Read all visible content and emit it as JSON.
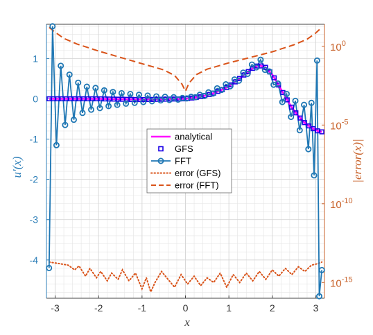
{
  "chart_data": {
    "type": "line",
    "xlabel": "x",
    "ylabel_left": "u'(x)",
    "ylabel_right": "|error(x)|",
    "xlim": [
      -3.2,
      3.2
    ],
    "ylim_left": [
      -4.95,
      1.85
    ],
    "ylim_right_exponent": [
      -16,
      1.4
    ],
    "yscale_right": "log",
    "x_ticks": [
      {
        "v": -3,
        "label": "-3"
      },
      {
        "v": -2,
        "label": "-2"
      },
      {
        "v": -1,
        "label": "-1"
      },
      {
        "v": 0,
        "label": "0"
      },
      {
        "v": 1,
        "label": "1"
      },
      {
        "v": 2,
        "label": "2"
      },
      {
        "v": 3,
        "label": "3"
      }
    ],
    "y_left_ticks": [
      {
        "v": 1,
        "label": "1"
      },
      {
        "v": 0,
        "label": "0"
      },
      {
        "v": -1,
        "label": "-1"
      },
      {
        "v": -2,
        "label": "-2"
      },
      {
        "v": -3,
        "label": "-3"
      },
      {
        "v": -4,
        "label": "-4"
      }
    ],
    "y_right_ticks": [
      {
        "exp": 0,
        "base": "10",
        "sup": "0"
      },
      {
        "exp": -5,
        "base": "10",
        "sup": "-5"
      },
      {
        "exp": -10,
        "base": "10",
        "sup": "-10"
      },
      {
        "exp": -15,
        "base": "10",
        "sup": "-15"
      }
    ],
    "grid": true,
    "legend_position": "center",
    "colors": {
      "left_axis": "#2d7fb8",
      "right_axis": "#c8622a",
      "analytical": "#ff00ff",
      "gfs": "#1a00e6",
      "fft": "#1f77b4",
      "error_gfs": "#d95319",
      "error_fft": "#d95319",
      "grid": "#e4e4e4"
    },
    "series": [
      {
        "name": "analytical",
        "style": "line",
        "color": "#ff00ff"
      },
      {
        "name": "GFS",
        "style": "square-markers",
        "color": "#1a00e6"
      },
      {
        "name": "FFT",
        "style": "line-circle",
        "color": "#1f77b4"
      },
      {
        "name": "error (GFS)",
        "style": "dotted",
        "color": "#d95319",
        "axis": "right"
      },
      {
        "name": "error (FFT)",
        "style": "dashed",
        "color": "#d95319",
        "axis": "right"
      }
    ],
    "legend": [
      {
        "label": "analytical",
        "style": "line"
      },
      {
        "label": "GFS",
        "style": "square"
      },
      {
        "label": "FFT",
        "style": "line-circle"
      },
      {
        "label": "error (GFS)",
        "style": "dotted"
      },
      {
        "label": "error (FFT)",
        "style": "dashed"
      }
    ],
    "analytical_points": [
      [
        -3.14,
        0.0
      ],
      [
        -2.5,
        0.0
      ],
      [
        -2.0,
        0.0
      ],
      [
        -1.5,
        -0.01
      ],
      [
        -1.0,
        -0.02
      ],
      [
        -0.5,
        -0.01
      ],
      [
        0.0,
        0.0
      ],
      [
        0.3,
        0.04
      ],
      [
        0.6,
        0.12
      ],
      [
        0.9,
        0.25
      ],
      [
        1.1,
        0.38
      ],
      [
        1.3,
        0.55
      ],
      [
        1.45,
        0.68
      ],
      [
        1.6,
        0.8
      ],
      [
        1.7,
        0.83
      ],
      [
        1.85,
        0.78
      ],
      [
        2.0,
        0.6
      ],
      [
        2.15,
        0.33
      ],
      [
        2.3,
        0.05
      ],
      [
        2.45,
        -0.22
      ],
      [
        2.6,
        -0.43
      ],
      [
        2.75,
        -0.6
      ],
      [
        2.9,
        -0.72
      ],
      [
        3.05,
        -0.8
      ],
      [
        3.14,
        -0.82
      ]
    ],
    "fft_points": [
      [
        -3.14,
        -4.2
      ],
      [
        -3.06,
        1.8
      ],
      [
        -2.97,
        -1.15
      ],
      [
        -2.87,
        0.82
      ],
      [
        -2.77,
        -0.65
      ],
      [
        -2.67,
        0.6
      ],
      [
        -2.57,
        -0.52
      ],
      [
        -2.47,
        0.4
      ],
      [
        -2.37,
        -0.35
      ],
      [
        -2.27,
        0.3
      ],
      [
        -2.17,
        -0.27
      ],
      [
        -2.07,
        0.27
      ],
      [
        -1.97,
        -0.23
      ],
      [
        -1.87,
        0.21
      ],
      [
        -1.77,
        -0.18
      ],
      [
        -1.67,
        0.17
      ],
      [
        -1.57,
        -0.15
      ],
      [
        -1.47,
        0.14
      ],
      [
        -1.37,
        -0.12
      ],
      [
        -1.27,
        0.12
      ],
      [
        -1.17,
        -0.1
      ],
      [
        -1.07,
        0.1
      ],
      [
        -0.97,
        -0.08
      ],
      [
        -0.87,
        0.08
      ],
      [
        -0.77,
        -0.06
      ],
      [
        -0.67,
        0.06
      ],
      [
        -0.57,
        -0.04
      ],
      [
        -0.47,
        0.05
      ],
      [
        -0.37,
        -0.03
      ],
      [
        -0.27,
        0.04
      ],
      [
        -0.17,
        -0.02
      ],
      [
        -0.07,
        0.02
      ],
      [
        0.03,
        0.01
      ],
      [
        0.13,
        0.05
      ],
      [
        0.23,
        0.04
      ],
      [
        0.33,
        0.1
      ],
      [
        0.43,
        0.07
      ],
      [
        0.53,
        0.16
      ],
      [
        0.63,
        0.13
      ],
      [
        0.73,
        0.26
      ],
      [
        0.83,
        0.22
      ],
      [
        0.93,
        0.36
      ],
      [
        1.03,
        0.31
      ],
      [
        1.13,
        0.48
      ],
      [
        1.23,
        0.45
      ],
      [
        1.33,
        0.65
      ],
      [
        1.43,
        0.62
      ],
      [
        1.53,
        0.85
      ],
      [
        1.63,
        0.78
      ],
      [
        1.73,
        0.97
      ],
      [
        1.83,
        0.72
      ],
      [
        1.93,
        0.68
      ],
      [
        2.03,
        0.35
      ],
      [
        2.13,
        0.38
      ],
      [
        2.23,
        -0.08
      ],
      [
        2.33,
        0.12
      ],
      [
        2.43,
        -0.45
      ],
      [
        2.53,
        -0.05
      ],
      [
        2.63,
        -0.78
      ],
      [
        2.73,
        -0.15
      ],
      [
        2.83,
        -1.25
      ],
      [
        2.9,
        -0.1
      ],
      [
        2.96,
        -1.9
      ],
      [
        3.03,
        0.95
      ],
      [
        3.08,
        -4.9
      ],
      [
        3.14,
        -4.25
      ]
    ],
    "error_fft_points": [
      [
        -3.14,
        1.2
      ],
      [
        -3.0,
        0.9
      ],
      [
        -2.8,
        0.5
      ],
      [
        -2.5,
        0.15
      ],
      [
        -2.0,
        -0.3
      ],
      [
        -1.5,
        -0.7
      ],
      [
        -1.0,
        -1.1
      ],
      [
        -0.5,
        -1.5
      ],
      [
        -0.25,
        -1.85
      ],
      [
        -0.08,
        -2.4
      ],
      [
        0.0,
        -2.85
      ],
      [
        0.08,
        -2.35
      ],
      [
        0.25,
        -1.8
      ],
      [
        0.5,
        -1.45
      ],
      [
        1.0,
        -1.05
      ],
      [
        1.5,
        -0.7
      ],
      [
        2.0,
        -0.35
      ],
      [
        2.5,
        0.1
      ],
      [
        2.8,
        0.45
      ],
      [
        3.0,
        0.85
      ],
      [
        3.14,
        1.2
      ]
    ],
    "error_gfs_points": [
      [
        -3.14,
        -13.7
      ],
      [
        -2.9,
        -13.8
      ],
      [
        -2.7,
        -13.9
      ],
      [
        -2.55,
        -14.2
      ],
      [
        -2.45,
        -13.95
      ],
      [
        -2.3,
        -14.6
      ],
      [
        -2.2,
        -14.1
      ],
      [
        -2.05,
        -14.7
      ],
      [
        -1.95,
        -14.3
      ],
      [
        -1.8,
        -14.9
      ],
      [
        -1.7,
        -14.4
      ],
      [
        -1.55,
        -14.8
      ],
      [
        -1.45,
        -14.2
      ],
      [
        -1.3,
        -14.9
      ],
      [
        -1.15,
        -14.4
      ],
      [
        -1.0,
        -15.4
      ],
      [
        -0.9,
        -14.7
      ],
      [
        -0.8,
        -15.6
      ],
      [
        -0.7,
        -15.0
      ],
      [
        -0.55,
        -14.3
      ],
      [
        -0.4,
        -14.8
      ],
      [
        -0.25,
        -15.3
      ],
      [
        -0.1,
        -14.5
      ],
      [
        0.05,
        -15.1
      ],
      [
        0.2,
        -14.6
      ],
      [
        0.35,
        -15.2
      ],
      [
        0.5,
        -14.7
      ],
      [
        0.65,
        -15.0
      ],
      [
        0.8,
        -14.4
      ],
      [
        0.95,
        -15.3
      ],
      [
        1.1,
        -14.5
      ],
      [
        1.25,
        -15.0
      ],
      [
        1.4,
        -14.4
      ],
      [
        1.55,
        -14.9
      ],
      [
        1.7,
        -14.3
      ],
      [
        1.85,
        -14.8
      ],
      [
        2.0,
        -14.2
      ],
      [
        2.15,
        -14.6
      ],
      [
        2.3,
        -14.1
      ],
      [
        2.45,
        -14.5
      ],
      [
        2.6,
        -14.0
      ],
      [
        2.75,
        -14.3
      ],
      [
        2.9,
        -13.9
      ],
      [
        3.05,
        -13.8
      ],
      [
        3.14,
        -13.7
      ]
    ]
  }
}
